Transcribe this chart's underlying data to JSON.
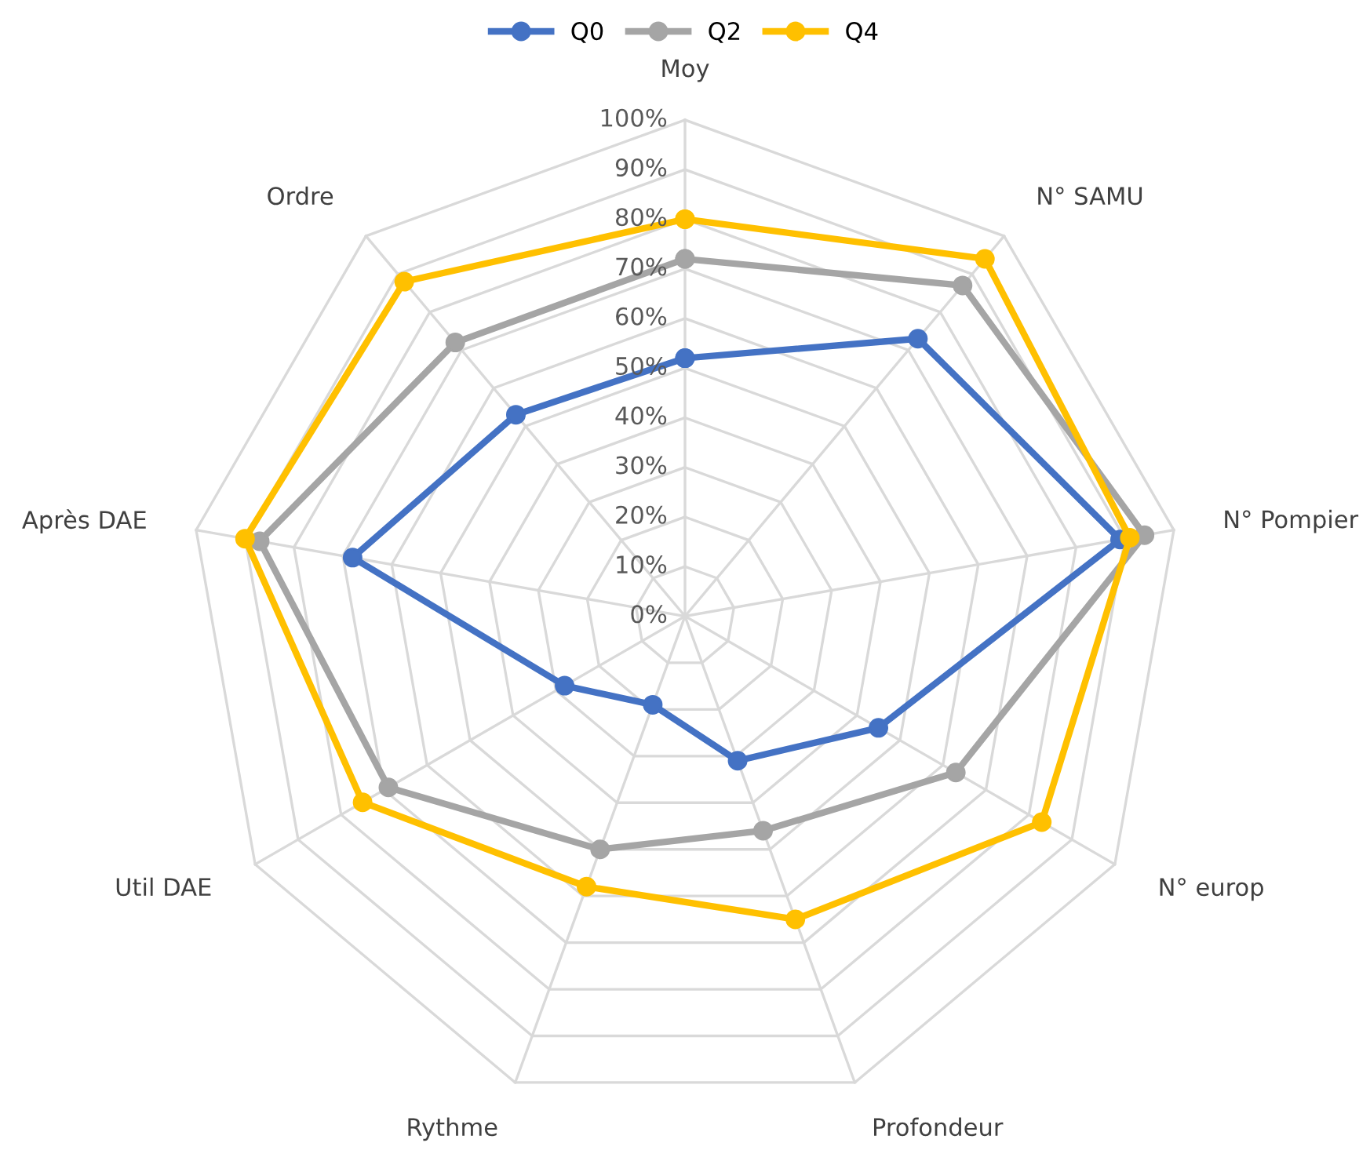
{
  "chart_data": {
    "type": "radar",
    "categories": [
      "Moy",
      "N° SAMU",
      "N° Pompier",
      "N° europ",
      "Profondeur",
      "Rythme",
      "Util DAE",
      "Après DAE",
      "Ordre"
    ],
    "series": [
      {
        "name": "Q0",
        "color": "#4472c4",
        "values": [
          52,
          73,
          89,
          45,
          31,
          19,
          28,
          68,
          53
        ]
      },
      {
        "name": "Q2",
        "color": "#a5a5a5",
        "values": [
          72,
          87,
          94,
          63,
          46,
          50,
          69,
          87,
          72
        ]
      },
      {
        "name": "Q4",
        "color": "#ffc000",
        "values": [
          80,
          94,
          91,
          83,
          65,
          58,
          75,
          90,
          88
        ]
      }
    ],
    "ylim": [
      0,
      100
    ],
    "yticks": [
      {
        "value": 0,
        "label": "0%"
      },
      {
        "value": 10,
        "label": "10%"
      },
      {
        "value": 20,
        "label": "20%"
      },
      {
        "value": 30,
        "label": "30%"
      },
      {
        "value": 40,
        "label": "40%"
      },
      {
        "value": 50,
        "label": "50%"
      },
      {
        "value": 60,
        "label": "60%"
      },
      {
        "value": 70,
        "label": "70%"
      },
      {
        "value": 80,
        "label": "80%"
      },
      {
        "value": 90,
        "label": "90%"
      },
      {
        "value": 100,
        "label": "100%"
      }
    ],
    "grid": true,
    "legend": "top",
    "marker": "circle",
    "line_style": "solid"
  }
}
